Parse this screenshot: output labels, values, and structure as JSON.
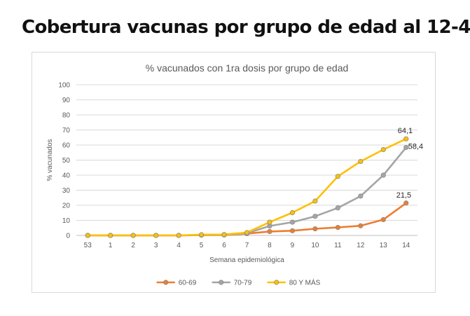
{
  "page": {
    "title": "Cobertura vacunas por grupo de edad al 12-4"
  },
  "chart_data": {
    "type": "line",
    "title": "% vacunados con 1ra dosis por grupo de edad",
    "xlabel": "Semana epidemiológica",
    "ylabel": "% vacunados",
    "categories": [
      "53",
      "1",
      "2",
      "3",
      "4",
      "5",
      "6",
      "7",
      "8",
      "9",
      "10",
      "11",
      "12",
      "13",
      "14"
    ],
    "ylim": [
      0,
      100
    ],
    "yticks": [
      "0",
      "10",
      "20",
      "30",
      "40",
      "50",
      "60",
      "70",
      "80",
      "90",
      "100"
    ],
    "grid": true,
    "legend_position": "bottom",
    "series": [
      {
        "name": "60-69",
        "color": "#ed7d31",
        "values": [
          0,
          0,
          0,
          0,
          0,
          0.2,
          0.3,
          1.2,
          2.6,
          3.1,
          4.4,
          5.3,
          6.4,
          10.5,
          21.5
        ]
      },
      {
        "name": "70-79",
        "color": "#a5a5a5",
        "values": [
          0,
          0,
          0,
          0,
          0,
          0.3,
          0.4,
          1.5,
          6.3,
          8.8,
          12.7,
          18.3,
          26.1,
          40.0,
          58.4
        ]
      },
      {
        "name": "80 Y MÁS",
        "color": "#ffc000",
        "values": [
          0,
          0,
          0,
          0,
          0,
          0.5,
          0.6,
          1.9,
          8.8,
          15.1,
          22.8,
          39.2,
          49.1,
          57.0,
          64.1
        ]
      }
    ],
    "data_labels": [
      {
        "series": "80 Y MÁS",
        "index": 14,
        "text": "64,1"
      },
      {
        "series": "70-79",
        "index": 14,
        "text": "58,4"
      },
      {
        "series": "60-69",
        "index": 14,
        "text": "21,5"
      }
    ]
  }
}
